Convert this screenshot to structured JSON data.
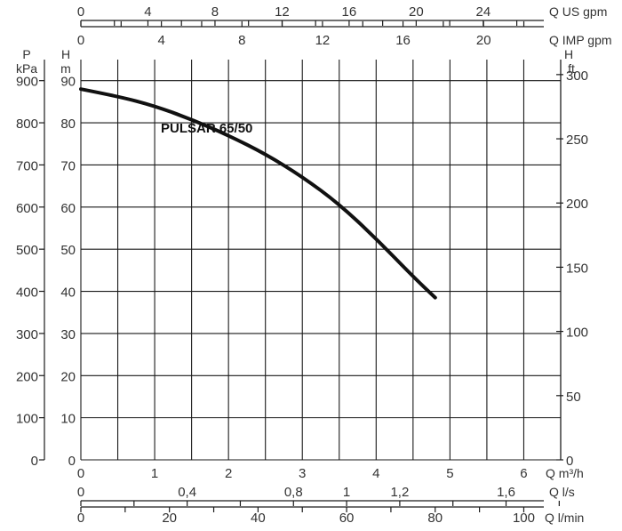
{
  "chart_data": {
    "type": "line",
    "title": "",
    "colors": {
      "curve": "#111111",
      "grid": "#1a1a1a",
      "text": "#333333"
    },
    "grid": true,
    "series": [
      {
        "name": "PULSAR 65/50",
        "x": [
          0,
          0.5,
          1.0,
          1.5,
          2.0,
          2.5,
          3.0,
          3.5,
          4.0,
          4.5,
          4.8
        ],
        "y": [
          88,
          86.3,
          84,
          80.8,
          77,
          72.6,
          67.2,
          60.7,
          52.5,
          43.5,
          38.5
        ]
      }
    ],
    "curve_label": "PULSAR 65/50",
    "x_main": {
      "min": 0,
      "max": 6.5,
      "ticks": [
        0,
        1,
        2,
        3,
        4,
        5,
        6
      ],
      "unit": "Q m³/h"
    },
    "y_main": {
      "min": 0,
      "max": 95,
      "ticks": [
        0,
        10,
        20,
        30,
        40,
        50,
        60,
        70,
        80,
        90
      ],
      "unit_top": "H",
      "unit_bottom": "m"
    },
    "y_kpa": {
      "ticks": [
        0,
        100,
        200,
        300,
        400,
        500,
        600,
        700,
        800,
        900
      ],
      "unit_top": "P",
      "unit_bottom": "kPa"
    },
    "y_ft": {
      "ticks": [
        0,
        50,
        100,
        150,
        200,
        250,
        300
      ],
      "unit_top": "H",
      "unit_bottom": "ft"
    },
    "x_us_gpm": {
      "ticks": [
        0,
        4,
        8,
        12,
        16,
        20,
        24
      ],
      "unit": "Q US gpm"
    },
    "x_imp_gpm": {
      "ticks": [
        0,
        4,
        8,
        12,
        16,
        20
      ],
      "unit": "Q IMP gpm"
    },
    "x_ls": {
      "ticks": [
        "0",
        "0,4",
        "0,8",
        "1",
        "1,2",
        "1,6"
      ],
      "tick_values": [
        0,
        0.4,
        0.8,
        1.0,
        1.2,
        1.6
      ],
      "unit": "Q l/s"
    },
    "x_lmin": {
      "ticks": [
        0,
        20,
        40,
        60,
        80,
        100
      ],
      "unit": "Q l/min"
    }
  }
}
